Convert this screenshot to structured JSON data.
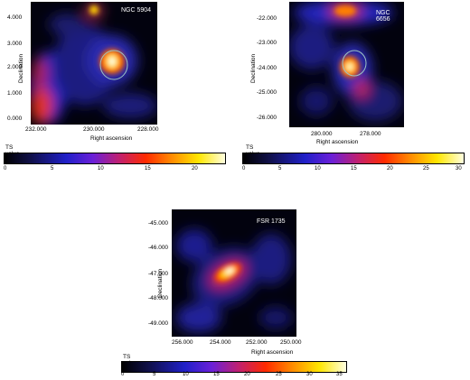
{
  "panels": [
    {
      "name": "NGC 5904",
      "ylabel": "Declination",
      "xlabel": "Right ascension",
      "yticks": [
        "4.000",
        "3.000",
        "2.000",
        "1.000",
        "0.000"
      ],
      "xticks": [
        "232.000",
        "230.000",
        "228.000"
      ],
      "colorbar_title": "TS value",
      "colorbar_ticks": [
        "0",
        "5",
        "10",
        "15",
        "20"
      ]
    },
    {
      "name": "NGC 6656",
      "ylabel": "Declination",
      "xlabel": "Right ascension",
      "yticks": [
        "-22.000",
        "-23.000",
        "-24.000",
        "-25.000",
        "-26.000"
      ],
      "xticks": [
        "280.000",
        "278.000"
      ],
      "colorbar_title": "TS value",
      "colorbar_ticks": [
        "0",
        "5",
        "10",
        "15",
        "20",
        "25",
        "30"
      ]
    },
    {
      "name": "FSR 1735",
      "ylabel": "Declination",
      "xlabel": "Right ascension",
      "yticks": [
        "-45.000",
        "-46.000",
        "-47.000",
        "-48.000",
        "-49.000"
      ],
      "xticks": [
        "256.000",
        "254.000",
        "252.000",
        "250.000"
      ],
      "colorbar_title": "TS value",
      "colorbar_ticks": [
        "0",
        "5",
        "10",
        "15",
        "20",
        "25",
        "30",
        "35"
      ]
    }
  ]
}
